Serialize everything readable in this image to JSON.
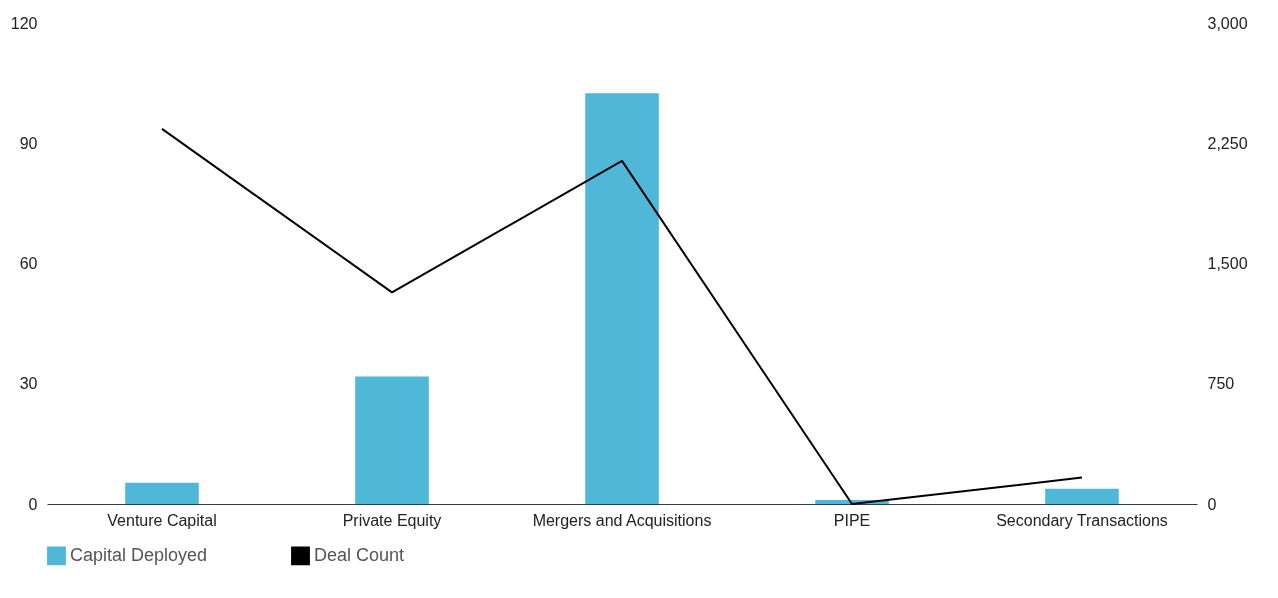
{
  "chart_data": {
    "type": "bar",
    "categories": [
      "Venture Capital",
      "Private Equity",
      "Mergers and Acquisitions",
      "PIPE",
      "Secondary Transactions"
    ],
    "series": [
      {
        "name": "Capital Deployed",
        "color": "#4fb8d8",
        "values": [
          5.3,
          31.8,
          102.5,
          1.0,
          3.8
        ]
      },
      {
        "name": "Deal Count",
        "type": "line",
        "axis": "y2",
        "color": "#000000",
        "values": [
          2340,
          1320,
          2140,
          0,
          165
        ]
      }
    ],
    "ylim": [
      0,
      120
    ],
    "yticks": [
      0,
      30,
      60,
      90,
      120
    ],
    "y2lim": [
      0,
      3000
    ],
    "y2ticks": [
      0,
      {
        "value": 750,
        "label": "750"
      },
      {
        "value": 1500,
        "label": "1,500"
      },
      {
        "value": 2250,
        "label": "2,250"
      },
      {
        "value": 3000,
        "label": "3,000"
      }
    ],
    "grid": false,
    "legend": "bottom",
    "marker": "none",
    "line_style": "solid"
  }
}
